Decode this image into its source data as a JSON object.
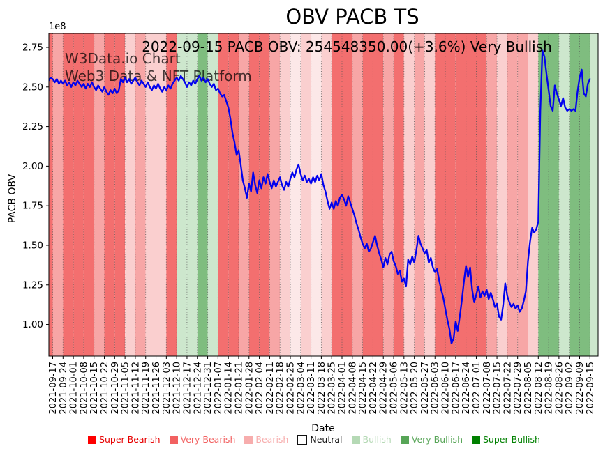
{
  "title": "OBV PACB TS",
  "annotation": "2022-09-15 PACB OBV: 254548350.00(+3.6%) Very Bullish",
  "watermark": {
    "line1": "W3Data.io Chart",
    "line2": "Web3 Data & NFT Platform"
  },
  "chart_data": {
    "type": "line",
    "title": "OBV PACB TS",
    "xlabel": "Date",
    "ylabel": "PACB OBV",
    "y_scale_note": "1e8",
    "ylim": [
      0.8,
      2.838
    ],
    "grid": "vertical-dotted",
    "legend_position": "bottom",
    "y_ticks": [
      "1.00",
      "1.25",
      "1.50",
      "1.75",
      "2.00",
      "2.25",
      "2.50",
      "2.75"
    ],
    "x_tick_labels": [
      "2021-09-17",
      "2021-09-24",
      "2021-10-01",
      "2021-10-08",
      "2021-10-15",
      "2021-10-22",
      "2021-10-29",
      "2021-11-05",
      "2021-11-12",
      "2021-11-19",
      "2021-11-26",
      "2021-12-03",
      "2021-12-10",
      "2021-12-17",
      "2021-12-24",
      "2021-12-31",
      "2022-01-07",
      "2022-01-14",
      "2022-01-21",
      "2022-01-28",
      "2022-02-04",
      "2022-02-11",
      "2022-02-18",
      "2022-02-25",
      "2022-03-04",
      "2022-03-11",
      "2022-03-18",
      "2022-03-25",
      "2022-04-01",
      "2022-04-08",
      "2022-04-15",
      "2022-04-22",
      "2022-04-29",
      "2022-05-06",
      "2022-05-13",
      "2022-05-20",
      "2022-05-27",
      "2022-06-03",
      "2022-06-10",
      "2022-06-17",
      "2022-06-24",
      "2022-07-01",
      "2022-07-08",
      "2022-07-15",
      "2022-07-22",
      "2022-07-29",
      "2022-08-05",
      "2022-08-12",
      "2022-08-19",
      "2022-08-26",
      "2022-09-02",
      "2022-09-09",
      "2022-09-15"
    ],
    "line_color": "#0202ee",
    "series": {
      "name": "PACB OBV",
      "unit": "1e8",
      "t_start_weeks": -0.4,
      "t_step_weeks": 0.2,
      "values": [
        2.54,
        2.56,
        2.55,
        2.53,
        2.55,
        2.52,
        2.54,
        2.52,
        2.54,
        2.51,
        2.53,
        2.5,
        2.53,
        2.51,
        2.54,
        2.52,
        2.5,
        2.52,
        2.49,
        2.52,
        2.5,
        2.53,
        2.5,
        2.48,
        2.51,
        2.49,
        2.47,
        2.5,
        2.47,
        2.45,
        2.48,
        2.46,
        2.49,
        2.46,
        2.48,
        2.55,
        2.53,
        2.56,
        2.53,
        2.55,
        2.52,
        2.54,
        2.56,
        2.53,
        2.51,
        2.54,
        2.52,
        2.5,
        2.53,
        2.5,
        2.48,
        2.51,
        2.49,
        2.52,
        2.49,
        2.47,
        2.5,
        2.48,
        2.51,
        2.49,
        2.52,
        2.54,
        2.56,
        2.54,
        2.57,
        2.55,
        2.53,
        2.5,
        2.53,
        2.51,
        2.54,
        2.52,
        2.55,
        2.57,
        2.54,
        2.56,
        2.53,
        2.55,
        2.52,
        2.5,
        2.52,
        2.48,
        2.49,
        2.46,
        2.44,
        2.45,
        2.41,
        2.37,
        2.3,
        2.21,
        2.15,
        2.07,
        2.1,
        2.01,
        1.91,
        1.86,
        1.8,
        1.89,
        1.84,
        1.96,
        1.88,
        1.83,
        1.91,
        1.86,
        1.93,
        1.89,
        1.95,
        1.9,
        1.86,
        1.91,
        1.87,
        1.9,
        1.93,
        1.88,
        1.85,
        1.9,
        1.87,
        1.92,
        1.96,
        1.93,
        1.98,
        2.01,
        1.95,
        1.91,
        1.94,
        1.9,
        1.92,
        1.89,
        1.93,
        1.9,
        1.94,
        1.91,
        1.95,
        1.88,
        1.84,
        1.78,
        1.73,
        1.77,
        1.73,
        1.78,
        1.75,
        1.8,
        1.82,
        1.79,
        1.75,
        1.81,
        1.77,
        1.73,
        1.69,
        1.64,
        1.6,
        1.55,
        1.51,
        1.48,
        1.51,
        1.46,
        1.48,
        1.52,
        1.56,
        1.5,
        1.45,
        1.41,
        1.36,
        1.42,
        1.38,
        1.44,
        1.46,
        1.4,
        1.37,
        1.32,
        1.34,
        1.27,
        1.29,
        1.24,
        1.41,
        1.38,
        1.43,
        1.39,
        1.47,
        1.56,
        1.51,
        1.48,
        1.45,
        1.47,
        1.39,
        1.42,
        1.36,
        1.33,
        1.35,
        1.28,
        1.22,
        1.17,
        1.1,
        1.03,
        0.97,
        0.88,
        0.91,
        1.02,
        0.96,
        1.05,
        1.15,
        1.27,
        1.37,
        1.3,
        1.36,
        1.22,
        1.14,
        1.19,
        1.24,
        1.17,
        1.21,
        1.18,
        1.22,
        1.16,
        1.2,
        1.16,
        1.11,
        1.13,
        1.05,
        1.03,
        1.12,
        1.26,
        1.18,
        1.14,
        1.11,
        1.13,
        1.1,
        1.12,
        1.08,
        1.1,
        1.15,
        1.21,
        1.4,
        1.52,
        1.61,
        1.58,
        1.6,
        1.65,
        2.35,
        2.73,
        2.69,
        2.58,
        2.48,
        2.38,
        2.35,
        2.51,
        2.46,
        2.42,
        2.38,
        2.43,
        2.37,
        2.35,
        2.36,
        2.35,
        2.36,
        2.35,
        2.47,
        2.56,
        2.61,
        2.46,
        2.44,
        2.52,
        2.55
      ]
    },
    "last_point": {
      "date": "2022-09-15",
      "obv": "254548350.00",
      "change_pct": "+3.6%",
      "sentiment": "Very Bullish"
    },
    "bands": {
      "pre_level": "very_bearish",
      "week_levels": [
        "bearish",
        "very_bearish",
        "very_bearish",
        "very_bearish",
        "bearish",
        "very_bearish",
        "very_bearish",
        "weak_bearish",
        "bearish",
        "weak_bearish",
        "weak_bearish",
        "very_bearish",
        "bullish",
        "bullish",
        "very_bullish",
        "bullish",
        "very_bearish",
        "very_bearish",
        "bearish",
        "very_bearish",
        "very_bearish",
        "bearish",
        "weak_bearish",
        "faint_bearish",
        "weak_bearish",
        "faint_bearish",
        "weak_bearish",
        "very_bearish",
        "very_bearish",
        "bearish",
        "very_bearish",
        "very_bearish",
        "bearish",
        "very_bearish",
        "weak_bearish",
        "bearish",
        "weak_bearish",
        "very_bearish",
        "very_bearish",
        "very_bearish",
        "very_bearish",
        "very_bearish",
        "bearish",
        "weak_bearish",
        "bearish",
        "bearish",
        "weak_bearish",
        "very_bullish",
        "very_bullish",
        "bullish",
        "very_bullish",
        "very_bullish",
        "bullish"
      ]
    },
    "level_colors": {
      "very_bearish": "#f36f6f",
      "bearish": "#f7a6a6",
      "weak_bearish": "#facfcf",
      "faint_bearish": "#fce8e8",
      "bullish": "#cde7cd",
      "very_bullish": "#7fbd7f"
    },
    "legend": [
      {
        "label": "Super Bearish",
        "swatch": "#fe0000",
        "text": "#e60000"
      },
      {
        "label": "Very Bearish",
        "swatch": "#f26161",
        "text": "#f26161"
      },
      {
        "label": "Bearish",
        "swatch": "#f7adad",
        "text": "#f7adad"
      },
      {
        "label": "Neutral",
        "swatch": "#ffffff",
        "text": "#111111",
        "border": "#111111"
      },
      {
        "label": "Bullish",
        "swatch": "#b5d9b5",
        "text": "#b5d9b5"
      },
      {
        "label": "Very Bullish",
        "swatch": "#57a557",
        "text": "#57a557"
      },
      {
        "label": "Super Bullish",
        "swatch": "#008000",
        "text": "#008000"
      }
    ]
  }
}
